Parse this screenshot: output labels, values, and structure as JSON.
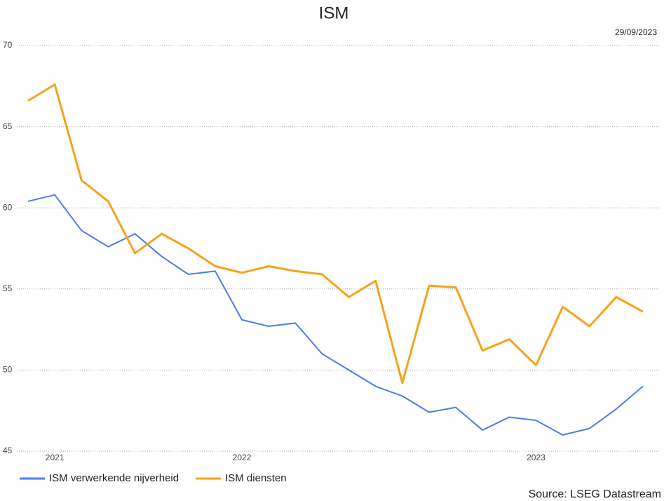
{
  "chart_data": {
    "type": "line",
    "title": "ISM",
    "date": "29/09/2023",
    "source": "Source: LSEG Datastream",
    "categories": [
      null,
      "2021",
      null,
      null,
      null,
      null,
      null,
      null,
      "2022",
      null,
      null,
      null,
      null,
      null,
      null,
      null,
      null,
      null,
      null,
      "2023",
      null,
      null,
      null,
      null
    ],
    "series": [
      {
        "name": "ISM verwerkende nijverheid",
        "color": "#4a7ee8",
        "values": [
          60.4,
          60.8,
          58.6,
          57.6,
          58.4,
          57.0,
          55.9,
          56.1,
          53.1,
          52.7,
          52.9,
          51.0,
          50.0,
          49.0,
          48.4,
          47.4,
          47.7,
          46.3,
          47.1,
          46.9,
          46.0,
          46.4,
          47.6,
          49.0
        ]
      },
      {
        "name": "ISM diensten",
        "color": "#f5a31a",
        "values": [
          66.6,
          67.6,
          61.7,
          60.4,
          57.2,
          58.4,
          57.5,
          56.4,
          56.0,
          56.4,
          56.1,
          55.9,
          54.5,
          55.5,
          49.2,
          55.2,
          55.1,
          51.2,
          51.9,
          50.3,
          53.9,
          52.7,
          54.5,
          53.6
        ]
      }
    ],
    "ylim": [
      45,
      70
    ],
    "yticks": [
      45,
      50,
      55,
      60,
      65,
      70
    ],
    "grid": true
  }
}
